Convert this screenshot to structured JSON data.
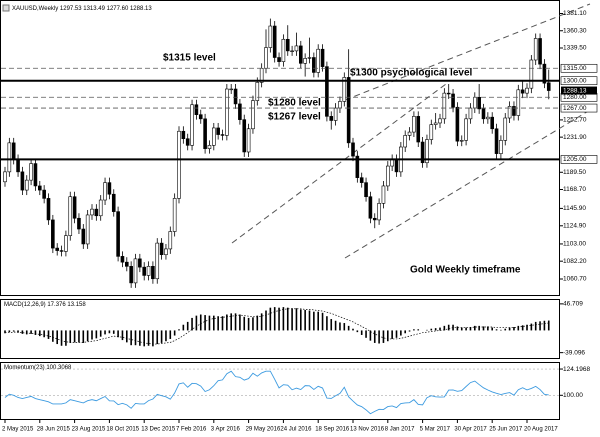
{
  "chart_data": [
    {
      "type": "candlestick",
      "title": "XAUUSD,Weekly  1297.53 1313.49 1277.60 1288.13",
      "categories": [
        "2 May 2015",
        null,
        null,
        null,
        null,
        null,
        null,
        null,
        "28 Jun 2015",
        null,
        null,
        null,
        null,
        null,
        null,
        null,
        "23 Aug 2015",
        null,
        null,
        null,
        null,
        null,
        null,
        null,
        "18 Oct 2015",
        null,
        null,
        null,
        null,
        null,
        null,
        null,
        "13 Dec 2015",
        null,
        null,
        null,
        null,
        null,
        null,
        null,
        "7 Feb 2016",
        null,
        null,
        null,
        null,
        null,
        null,
        null,
        "3 Apr 2016",
        null,
        null,
        null,
        null,
        null,
        null,
        null,
        "29 May 2016",
        null,
        null,
        null,
        null,
        null,
        null,
        null,
        "24 Jul 2016",
        null,
        null,
        null,
        null,
        null,
        null,
        null,
        "18 Sep 2016",
        null,
        null,
        null,
        null,
        null,
        null,
        null,
        "13 Nov 2016",
        null,
        null,
        null,
        null,
        null,
        null,
        null,
        "8 Jan 2017",
        null,
        null,
        null,
        null,
        null,
        null,
        null,
        "5 Mar 2017",
        null,
        null,
        null,
        null,
        null,
        null,
        null,
        "30 Apr 2017",
        null,
        null,
        null,
        null,
        null,
        null,
        null,
        "25 Jun 2017",
        null,
        null,
        null,
        null,
        null,
        null,
        null,
        "20 Aug 2017",
        null,
        null,
        null,
        null,
        null
      ],
      "open": [
        1178,
        1190,
        1225,
        1205,
        1190,
        1168,
        1180,
        1200,
        1173,
        1168,
        1158,
        1132,
        1098,
        1095,
        1094,
        1113,
        1160,
        1134,
        1121,
        1103,
        1138,
        1145,
        1137,
        1156,
        1177,
        1163,
        1142,
        1088,
        1081,
        1076,
        1056,
        1085,
        1075,
        1065,
        1076,
        1061,
        1104,
        1090,
        1097,
        1118,
        1158,
        1239,
        1230,
        1222,
        1271,
        1259,
        1254,
        1218,
        1222,
        1243,
        1235,
        1234,
        1290,
        1290,
        1272,
        1253,
        1214,
        1242,
        1276,
        1298,
        1315,
        1340,
        1366,
        1328,
        1323,
        1350,
        1336,
        1336,
        1342,
        1321,
        1327,
        1328,
        1310,
        1338,
        1317,
        1257,
        1252,
        1267,
        1275,
        1304,
        1225,
        1209,
        1183,
        1177,
        1160,
        1134,
        1132,
        1152,
        1173,
        1197,
        1205,
        1190,
        1220,
        1234,
        1238,
        1257,
        1226,
        1201,
        1229,
        1247,
        1249,
        1254,
        1285,
        1284,
        1268,
        1227,
        1228,
        1254,
        1267,
        1280,
        1266,
        1254,
        1256,
        1242,
        1212,
        1228,
        1255,
        1269,
        1258,
        1289,
        1285,
        1291,
        1325,
        1351,
        1320,
        1297.53
      ],
      "high": [
        1196,
        1231,
        1231,
        1211,
        1196,
        1186,
        1206,
        1206,
        1179,
        1174,
        1164,
        1138,
        1104,
        1101,
        1119,
        1166,
        1166,
        1140,
        1127,
        1144,
        1151,
        1151,
        1162,
        1183,
        1183,
        1169,
        1148,
        1094,
        1087,
        1082,
        1091,
        1091,
        1081,
        1082,
        1082,
        1110,
        1110,
        1103,
        1124,
        1164,
        1245,
        1245,
        1236,
        1277,
        1277,
        1265,
        1260,
        1228,
        1249,
        1249,
        1241,
        1296,
        1296,
        1296,
        1278,
        1259,
        1248,
        1282,
        1304,
        1321,
        1362,
        1375,
        1372,
        1334,
        1356,
        1367,
        1342,
        1358,
        1348,
        1333,
        1352,
        1334,
        1344,
        1344,
        1323,
        1263,
        1273,
        1281,
        1310,
        1338,
        1231,
        1215,
        1189,
        1183,
        1166,
        1140,
        1158,
        1179,
        1203,
        1211,
        1211,
        1226,
        1240,
        1244,
        1263,
        1263,
        1232,
        1235,
        1253,
        1261,
        1260,
        1291,
        1296,
        1290,
        1274,
        1234,
        1260,
        1273,
        1286,
        1296,
        1272,
        1262,
        1262,
        1248,
        1234,
        1261,
        1275,
        1275,
        1295,
        1300,
        1297,
        1331,
        1357,
        1357,
        1326,
        1313.49
      ],
      "low": [
        1172,
        1184,
        1199,
        1184,
        1162,
        1162,
        1174,
        1167,
        1162,
        1152,
        1126,
        1092,
        1089,
        1088,
        1088,
        1107,
        1128,
        1115,
        1097,
        1097,
        1132,
        1131,
        1131,
        1150,
        1157,
        1136,
        1082,
        1075,
        1070,
        1050,
        1050,
        1069,
        1059,
        1059,
        1055,
        1055,
        1084,
        1084,
        1091,
        1112,
        1152,
        1224,
        1216,
        1216,
        1253,
        1248,
        1212,
        1212,
        1216,
        1229,
        1228,
        1228,
        1284,
        1266,
        1247,
        1208,
        1208,
        1236,
        1270,
        1292,
        1309,
        1334,
        1322,
        1317,
        1317,
        1330,
        1330,
        1330,
        1315,
        1305,
        1321,
        1304,
        1304,
        1311,
        1251,
        1241,
        1246,
        1261,
        1269,
        1219,
        1203,
        1177,
        1171,
        1154,
        1128,
        1122,
        1126,
        1146,
        1167,
        1191,
        1184,
        1184,
        1214,
        1228,
        1232,
        1220,
        1195,
        1195,
        1223,
        1241,
        1243,
        1248,
        1278,
        1262,
        1221,
        1221,
        1222,
        1248,
        1261,
        1260,
        1248,
        1248,
        1236,
        1206,
        1205,
        1222,
        1249,
        1252,
        1252,
        1279,
        1279,
        1285,
        1319,
        1314,
        1291,
        1277.6
      ],
      "close": [
        1190,
        1225,
        1205,
        1190,
        1168,
        1180,
        1200,
        1173,
        1168,
        1158,
        1132,
        1098,
        1095,
        1094,
        1113,
        1160,
        1134,
        1121,
        1103,
        1138,
        1145,
        1137,
        1156,
        1177,
        1163,
        1142,
        1088,
        1081,
        1076,
        1056,
        1085,
        1075,
        1065,
        1076,
        1061,
        1104,
        1090,
        1097,
        1118,
        1158,
        1239,
        1230,
        1222,
        1271,
        1259,
        1254,
        1218,
        1222,
        1243,
        1235,
        1234,
        1290,
        1290,
        1272,
        1253,
        1214,
        1242,
        1276,
        1298,
        1315,
        1340,
        1366,
        1328,
        1323,
        1350,
        1336,
        1336,
        1342,
        1321,
        1327,
        1328,
        1310,
        1338,
        1317,
        1257,
        1252,
        1267,
        1275,
        1304,
        1225,
        1209,
        1183,
        1177,
        1160,
        1134,
        1132,
        1152,
        1173,
        1197,
        1205,
        1190,
        1220,
        1234,
        1238,
        1257,
        1226,
        1201,
        1229,
        1247,
        1249,
        1254,
        1285,
        1284,
        1268,
        1227,
        1228,
        1254,
        1267,
        1280,
        1266,
        1254,
        1256,
        1242,
        1212,
        1228,
        1255,
        1269,
        1258,
        1289,
        1285,
        1291,
        1325,
        1351,
        1320,
        1297,
        1288.13
      ],
      "ylim": [
        1045,
        1395
      ],
      "yticks": [
        {
          "value": 1381.1,
          "label": "1381.10"
        },
        {
          "value": 1360.3,
          "label": "1360.30"
        },
        {
          "value": 1339.5,
          "label": "1339.50"
        },
        {
          "value": 1252.7,
          "label": "1252.70"
        },
        {
          "value": 1231.9,
          "label": "1231.90"
        },
        {
          "value": 1189.5,
          "label": "1189.50"
        },
        {
          "value": 1168.7,
          "label": "1168.70"
        },
        {
          "value": 1145.9,
          "label": "1145.90"
        },
        {
          "value": 1124.9,
          "label": "1124.90"
        },
        {
          "value": 1103,
          "label": "1103.00"
        },
        {
          "value": 1082.2,
          "label": "1082.20"
        },
        {
          "value": 1060.7,
          "label": "1060.70"
        }
      ],
      "levels": [
        {
          "value": 1315,
          "label": "1315.00",
          "style": "dashed"
        },
        {
          "value": 1300,
          "label": "1300.00",
          "style": "solid"
        },
        {
          "value": 1280,
          "label": "1280.00",
          "style": "dashed"
        },
        {
          "value": 1267,
          "label": "1267.00",
          "style": "dashed"
        },
        {
          "value": 1205,
          "label": "1205.00",
          "style": "solid"
        }
      ],
      "annotations": [
        "$1315 level",
        "$1300 psychological level",
        "$1280 level",
        "$1267 level",
        "Gold Weekly timeframe"
      ],
      "up_color": "#ffffff",
      "down_color": "#000000"
    },
    {
      "type": "bar",
      "title": "MACD(12,26,9) 17.376 13.158",
      "color": "#000000",
      "values": [
        -5,
        -3,
        -2,
        -4,
        -6,
        -7,
        -6,
        -8,
        -10,
        -12,
        -15,
        -20,
        -24,
        -27,
        -27,
        -22,
        -21,
        -21,
        -22,
        -19,
        -16,
        -14,
        -11,
        -7,
        -5,
        -6,
        -12,
        -17,
        -21,
        -26,
        -26,
        -27,
        -28,
        -27,
        -28,
        -24,
        -22,
        -19,
        -15,
        -9,
        2,
        10,
        15,
        22,
        26,
        28,
        27,
        26,
        26,
        25,
        25,
        28,
        30,
        30,
        28,
        24,
        22,
        23,
        26,
        30,
        35,
        40,
        41,
        40,
        41,
        40,
        39,
        39,
        37,
        36,
        35,
        33,
        33,
        31,
        25,
        20,
        17,
        14,
        13,
        8,
        3,
        -3,
        -8,
        -13,
        -18,
        -22,
        -23,
        -22,
        -19,
        -15,
        -13,
        -9,
        -5,
        -2,
        2,
        2,
        0,
        1,
        3,
        4,
        5,
        8,
        10,
        10,
        7,
        5,
        5,
        6,
        8,
        8,
        7,
        7,
        5,
        2,
        1,
        3,
        5,
        6,
        8,
        9,
        10,
        12,
        15,
        16,
        17,
        17.376
      ],
      "signal": [
        -4,
        -4,
        -3,
        -3,
        -4,
        -5,
        -5,
        -6,
        -7,
        -8,
        -10,
        -12,
        -15,
        -18,
        -20,
        -21,
        -21,
        -21,
        -21,
        -20,
        -19,
        -18,
        -16,
        -14,
        -12,
        -10,
        -11,
        -12,
        -14,
        -16,
        -18,
        -20,
        -22,
        -23,
        -24,
        -24,
        -23,
        -22,
        -21,
        -18,
        -14,
        -9,
        -4,
        2,
        7,
        12,
        16,
        19,
        21,
        22,
        23,
        24,
        25,
        26,
        27,
        26,
        25,
        24,
        24,
        25,
        27,
        30,
        33,
        35,
        37,
        38,
        38,
        38,
        38,
        37,
        37,
        36,
        35,
        34,
        32,
        30,
        27,
        24,
        21,
        18,
        15,
        11,
        7,
        3,
        -2,
        -6,
        -10,
        -13,
        -15,
        -15,
        -15,
        -14,
        -12,
        -10,
        -8,
        -6,
        -4,
        -3,
        -2,
        -1,
        0,
        1,
        3,
        5,
        5,
        5,
        5,
        5,
        6,
        6,
        6,
        6,
        6,
        5,
        5,
        5,
        5,
        5,
        6,
        7,
        8,
        9,
        10,
        11,
        12,
        13.158
      ],
      "ylim": [
        -45,
        50
      ],
      "yticks": [
        46.709,
        -39.096
      ]
    },
    {
      "type": "line",
      "title": "Momentum(23) 100.3068",
      "color": "#3d9be0",
      "values": [
        98,
        101,
        100,
        98,
        97,
        98,
        99,
        97,
        96,
        95,
        94,
        92,
        92,
        92,
        93,
        96,
        95,
        94,
        93,
        95,
        96,
        95,
        97,
        98.9,
        94.9,
        94.8,
        91.4,
        92.6,
        91.2,
        88,
        92.5,
        92,
        92,
        95.1,
        96.6,
        100.8,
        99.6,
        98.6,
        96.4,
        102.1,
        110.5,
        111.5,
        107.4,
        111,
        110.7,
        108.5,
        103.5,
        105.1,
        108.8,
        113.5,
        114.2,
        119.9,
        122.2,
        117.2,
        116.6,
        114,
        115.4,
        120.3,
        117.6,
        120.6,
        122.2,
        122.2,
        114.7,
        106.8,
        109.8,
        109.3,
        105.1,
        106.6,
        105.3,
        108.9,
        108.7,
        105.4,
        108.3,
        106.7,
        97.4,
        97.1,
        99.6,
        101.8,
        107.4,
        98.6,
        94.7,
        91.1,
        89.5,
        86.6,
        83,
        85.2,
        87.1,
        86.9,
        89.6,
        90.2,
        88.7,
        92.4,
        93,
        93.2,
        96,
        91.6,
        91.2,
        97.8,
        99.6,
        98.6,
        98.4,
        98.5,
        104.8,
        104.9,
        103.7,
        104.3,
        108.1,
        111.7,
        113.1,
        109.9,
        106.9,
        104.9,
        103.1,
        101.8,
        100.7,
        101.7,
        102.5,
        100.1,
        105.1,
        107,
        105,
        106.3,
        108.2,
        105.3,
        100.9,
        100.3068
      ],
      "ylim": [
        80,
        127
      ],
      "yticks": [
        124.1968,
        {
          "value": 100,
          "label": "100.00"
        }
      ],
      "grid": true
    }
  ]
}
